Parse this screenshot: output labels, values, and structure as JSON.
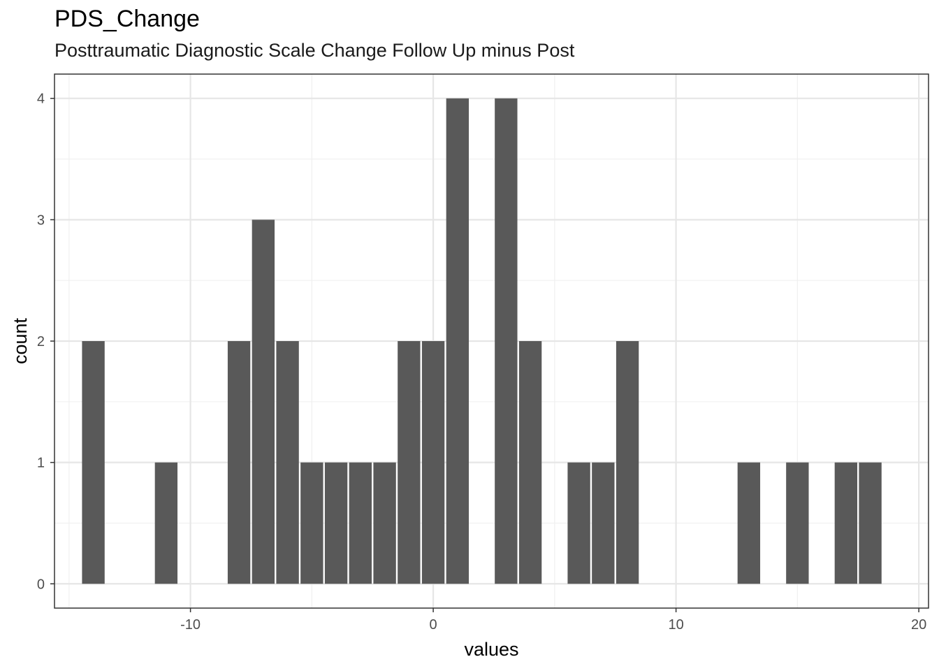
{
  "chart_data": {
    "type": "bar",
    "title": "PDS_Change",
    "subtitle": "Posttraumatic Diagnostic Scale Change Follow Up minus Post",
    "xlabel": "values",
    "ylabel": "count",
    "xlim": [
      -15.6,
      20.4
    ],
    "ylim": [
      -0.2,
      4.2
    ],
    "x_ticks": [
      -10,
      0,
      10,
      20
    ],
    "x_tick_labels": [
      "-10",
      "0",
      "10",
      "20"
    ],
    "y_ticks": [
      0,
      1,
      2,
      3,
      4
    ],
    "y_tick_labels": [
      "0",
      "1",
      "2",
      "3",
      "4"
    ],
    "bin_width": 1,
    "bin_centers": [
      -14,
      -11,
      -8,
      -7,
      -6,
      -5,
      -4,
      -3,
      -2,
      -1,
      0,
      1,
      3,
      4,
      6,
      7,
      8,
      13,
      15,
      17,
      18
    ],
    "values": [
      2,
      1,
      2,
      3,
      2,
      1,
      1,
      1,
      1,
      2,
      2,
      4,
      4,
      2,
      1,
      1,
      2,
      1,
      1,
      1,
      1
    ],
    "bar_color": "#595959",
    "grid": true,
    "legend": "none"
  }
}
